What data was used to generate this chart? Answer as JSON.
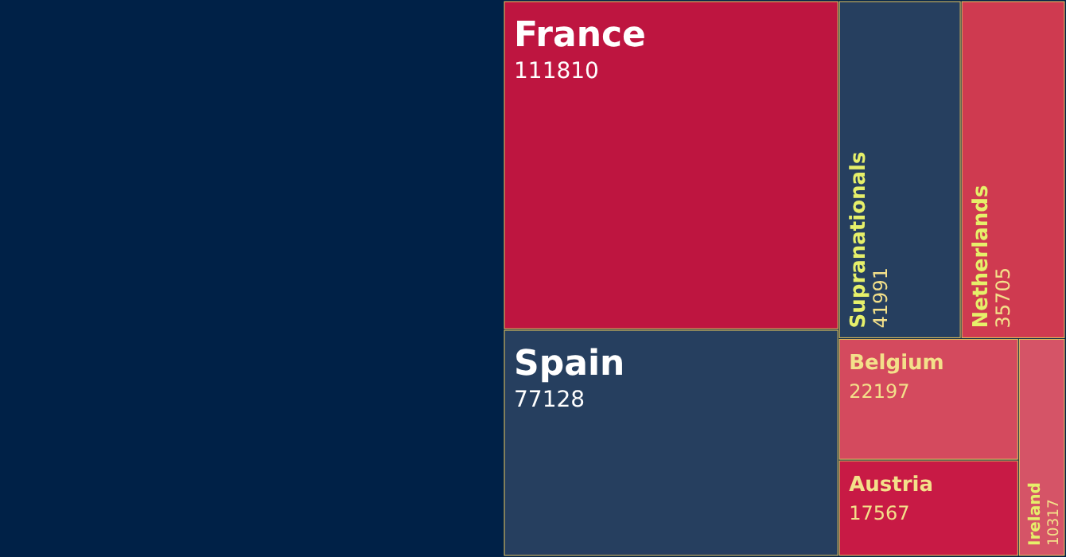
{
  "chart_data": {
    "type": "other",
    "categories": [
      "France",
      "Spain",
      "Supranationals",
      "Netherlands",
      "Belgium",
      "Austria",
      "Ireland"
    ],
    "values": [
      111810,
      77128,
      41991,
      35705,
      22197,
      17567,
      10317
    ],
    "colors": [
      "#be1540",
      "#263f5f",
      "#263f5f",
      "#cf3a50",
      "#d44a5e",
      "#c81a45",
      "#d55467"
    ],
    "data_labels": true
  }
}
